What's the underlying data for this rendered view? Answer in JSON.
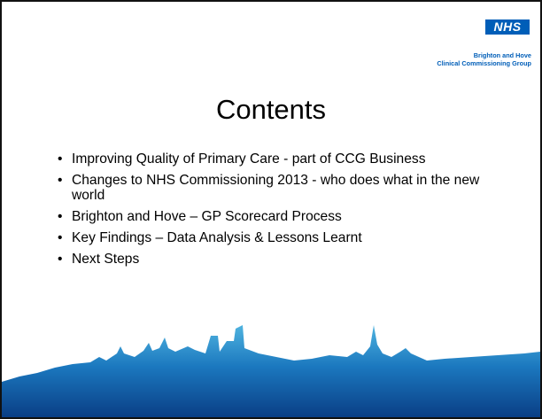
{
  "header": {
    "logo": "NHS",
    "organisation": [
      "Brighton and Hove",
      "Clinical Commissioning Group"
    ]
  },
  "title": "Contents",
  "bullets": [
    "Improving Quality of Primary Care -  part of CCG Business",
    "Changes to NHS Commissioning 2013 - who does what in the new world",
    "Brighton and Hove – GP Scorecard Process",
    "Key Findings – Data Analysis & Lessons Learnt",
    "Next Steps"
  ]
}
